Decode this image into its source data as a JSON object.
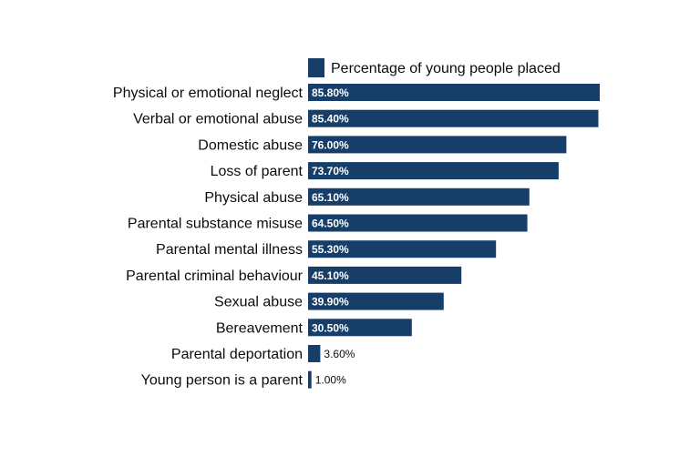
{
  "chart_data": {
    "type": "bar",
    "orientation": "horizontal",
    "title": "",
    "xlabel": "",
    "ylabel": "",
    "legend_position": "top",
    "grid": false,
    "xlim": [
      0,
      100
    ],
    "categories": [
      "Physical or emotional neglect",
      "Verbal or emotional abuse",
      "Domestic abuse",
      "Loss of parent",
      "Physical abuse",
      "Parental substance misuse",
      "Parental mental illness",
      "Parental criminal behaviour",
      "Sexual abuse",
      "Bereavement",
      "Parental deportation",
      "Young person is a parent"
    ],
    "series": [
      {
        "name": "Percentage of young people placed",
        "color": "#163e68",
        "values": [
          85.8,
          85.4,
          76.0,
          73.7,
          65.1,
          64.5,
          55.3,
          45.1,
          39.9,
          30.5,
          3.6,
          1.0
        ],
        "labels": [
          "85.80%",
          "85.40%",
          "76.00%",
          "73.70%",
          "65.10%",
          "64.50%",
          "55.30%",
          "45.10%",
          "39.90%",
          "30.50%",
          "3.60%",
          "1.00%"
        ]
      }
    ]
  }
}
